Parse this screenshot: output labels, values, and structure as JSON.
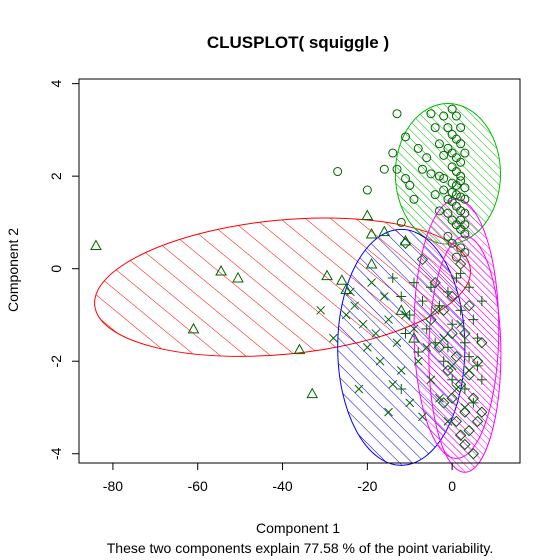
{
  "chart_data": {
    "type": "scatter",
    "title": "CLUSPLOT( squiggle )",
    "xlabel": "Component 1",
    "ylabel": "Component 2",
    "subtitle": "These two components explain 77.58 % of the point variability.",
    "xlim": [
      -88,
      16
    ],
    "ylim": [
      -4.2,
      4.1
    ],
    "x_ticks": [
      -80,
      -60,
      -40,
      -20,
      0
    ],
    "y_ticks": [
      -4,
      -2,
      0,
      2,
      4
    ],
    "ellipses": [
      {
        "cluster": 1,
        "color": "#ff0000",
        "cx": -40,
        "cy": -0.4,
        "rx": 44.5,
        "ry": 1.45,
        "angle_deg": -5.5,
        "hatch_angle": 45,
        "hatch_spacing": 16
      },
      {
        "cluster": 2,
        "color": "#00bb00",
        "cx": -1,
        "cy": 2.05,
        "rx": 12.4,
        "ry": 1.52,
        "angle_deg": 0,
        "hatch_angle": 45,
        "hatch_spacing": 6
      },
      {
        "cluster": 3,
        "color": "#0000ff",
        "cx": -12,
        "cy": -1.7,
        "rx": 15,
        "ry": 2.55,
        "angle_deg": 0,
        "hatch_angle": 45,
        "hatch_spacing": 9
      },
      {
        "cluster": 4,
        "color": "#ff00ff",
        "cx": 1,
        "cy": -1.3,
        "rx": 10,
        "ry": 2.8,
        "angle_deg": 0,
        "hatch_angle": 45,
        "hatch_spacing": 5
      },
      {
        "cluster": 5,
        "color": "#ff00ff",
        "cx": 3,
        "cy": -1.85,
        "rx": 8.5,
        "ry": 2.55,
        "angle_deg": 0,
        "hatch_angle": 45,
        "hatch_spacing": 5
      }
    ],
    "series": [
      {
        "marker": "triangle",
        "color": "#006400",
        "points": [
          [
            -84,
            0.5
          ],
          [
            -61,
            -1.3
          ],
          [
            -54.5,
            -0.05
          ],
          [
            -50.5,
            -0.2
          ],
          [
            -36,
            -1.75
          ],
          [
            -29.5,
            -0.15
          ],
          [
            -26,
            -0.25
          ],
          [
            -25,
            -0.45
          ],
          [
            -19,
            0.1
          ],
          [
            -19,
            0.75
          ],
          [
            -20,
            1.15
          ],
          [
            -16,
            0.8
          ],
          [
            -11,
            0.6
          ],
          [
            -33,
            -2.7
          ],
          [
            -12,
            -0.9
          ],
          [
            -9,
            -1.5
          ]
        ]
      },
      {
        "marker": "circle",
        "color": "#006400",
        "points": [
          [
            -27,
            2.1
          ],
          [
            -20,
            1.7
          ],
          [
            -16,
            2.15
          ],
          [
            -13,
            2.15
          ],
          [
            -14,
            2.5
          ],
          [
            -13,
            3.35
          ],
          [
            -11,
            2.85
          ],
          [
            -11,
            1.95
          ],
          [
            -10,
            1.8
          ],
          [
            -8,
            2.6
          ],
          [
            -7,
            2.15
          ],
          [
            -5,
            3.35
          ],
          [
            -4,
            3.05
          ],
          [
            -3,
            2.7
          ],
          [
            -2,
            3.3
          ],
          [
            -1,
            3.05
          ],
          [
            0,
            3.45
          ],
          [
            1,
            3.3
          ],
          [
            2,
            3.05
          ],
          [
            -1,
            2.6
          ],
          [
            0,
            2.5
          ],
          [
            1,
            2.4
          ],
          [
            2,
            2.3
          ],
          [
            -3,
            2.0
          ],
          [
            -2,
            1.95
          ],
          [
            0,
            1.85
          ],
          [
            1,
            1.8
          ],
          [
            2,
            1.9
          ],
          [
            3,
            1.75
          ],
          [
            -4,
            1.6
          ],
          [
            -1,
            1.5
          ],
          [
            0,
            1.45
          ],
          [
            1,
            1.35
          ],
          [
            2,
            1.25
          ],
          [
            3,
            1.2
          ],
          [
            -3,
            1.25
          ],
          [
            0,
            1.05
          ],
          [
            1,
            0.95
          ],
          [
            2,
            0.85
          ],
          [
            3,
            0.75
          ],
          [
            -1,
            0.7
          ],
          [
            0,
            0.55
          ],
          [
            2,
            0.45
          ],
          [
            3,
            0.35
          ],
          [
            1,
            0.25
          ],
          [
            0,
            2.9
          ],
          [
            1,
            2.8
          ],
          [
            2,
            2.7
          ],
          [
            0,
            2.2
          ],
          [
            1,
            2.1
          ],
          [
            2,
            2.0
          ],
          [
            3,
            1.5
          ],
          [
            -2,
            2.45
          ],
          [
            -6,
            2.4
          ],
          [
            -5,
            2.05
          ],
          [
            0,
            1.65
          ],
          [
            1,
            1.6
          ],
          [
            2,
            1.55
          ],
          [
            2,
            1.05
          ],
          [
            3,
            0.95
          ],
          [
            -9,
            1.5
          ],
          [
            -12,
            1.0
          ],
          [
            -1,
            1.2
          ],
          [
            3,
            2.5
          ],
          [
            -2,
            1.7
          ]
        ]
      },
      {
        "marker": "x",
        "color": "#006400",
        "points": [
          [
            -31,
            -0.9
          ],
          [
            -28,
            -1.5
          ],
          [
            -25,
            -1.0
          ],
          [
            -23,
            -0.8
          ],
          [
            -21,
            -1.2
          ],
          [
            -20,
            -1.7
          ],
          [
            -19,
            -0.3
          ],
          [
            -18,
            -1.4
          ],
          [
            -17,
            -2.0
          ],
          [
            -16,
            -0.6
          ],
          [
            -15,
            -1.1
          ],
          [
            -14,
            -2.5
          ],
          [
            -13,
            -1.6
          ],
          [
            -12,
            -2.2
          ],
          [
            -11,
            -1.0
          ],
          [
            -10,
            -2.9
          ],
          [
            -9,
            -1.3
          ],
          [
            -8,
            -2.0
          ],
          [
            -7,
            -3.2
          ],
          [
            -6,
            -1.7
          ],
          [
            -5,
            -2.4
          ],
          [
            -4,
            -0.9
          ],
          [
            -3,
            -2.8
          ],
          [
            -2,
            -1.5
          ],
          [
            -1,
            -3.3
          ],
          [
            0,
            -2.1
          ],
          [
            1,
            -2.6
          ],
          [
            2,
            -1.2
          ],
          [
            3,
            -3.0
          ],
          [
            4,
            -2.2
          ],
          [
            -22,
            -2.6
          ],
          [
            -24,
            -0.5
          ],
          [
            -15,
            -3.1
          ]
        ]
      },
      {
        "marker": "plus",
        "color": "#006400",
        "points": [
          [
            -14,
            -0.2
          ],
          [
            -12,
            -0.6
          ],
          [
            -10,
            -1.0
          ],
          [
            -9,
            -0.3
          ],
          [
            -7,
            -0.7
          ],
          [
            -6,
            -1.3
          ],
          [
            -5,
            -0.4
          ],
          [
            -4,
            -1.6
          ],
          [
            -3,
            -0.8
          ],
          [
            -2,
            -2.0
          ],
          [
            -1,
            -0.5
          ],
          [
            0,
            -1.2
          ],
          [
            1,
            -0.2
          ],
          [
            2,
            -0.9
          ],
          [
            3,
            -1.6
          ],
          [
            4,
            -0.4
          ],
          [
            5,
            -1.1
          ],
          [
            6,
            -2.1
          ],
          [
            7,
            -0.7
          ],
          [
            3,
            -2.6
          ],
          [
            -8,
            -1.8
          ],
          [
            -11,
            -1.4
          ],
          [
            0,
            -2.4
          ],
          [
            5,
            -2.9
          ],
          [
            2,
            -0.1
          ],
          [
            6,
            -1.5
          ],
          [
            -1,
            -1.7
          ],
          [
            4,
            -1.9
          ],
          [
            -12,
            -2.6
          ],
          [
            7,
            -2.4
          ]
        ]
      },
      {
        "marker": "diamond",
        "color": "#006400",
        "points": [
          [
            -11,
            0.55
          ],
          [
            -7,
            0.2
          ],
          [
            -4,
            -0.3
          ],
          [
            -2,
            -0.9
          ],
          [
            0,
            -1.4
          ],
          [
            1,
            -1.9
          ],
          [
            2,
            -2.5
          ],
          [
            3,
            -3.1
          ],
          [
            4,
            -3.5
          ],
          [
            5,
            -2.8
          ],
          [
            6,
            -3.3
          ],
          [
            5,
            -4.0
          ],
          [
            7,
            -3.1
          ],
          [
            2,
            -3.6
          ],
          [
            0,
            -2.8
          ],
          [
            -1,
            -2.2
          ],
          [
            3,
            -1.4
          ],
          [
            6,
            -2.0
          ],
          [
            4,
            -0.8
          ],
          [
            2,
            0.1
          ],
          [
            -3,
            -1.7
          ],
          [
            -5,
            -1.1
          ],
          [
            1,
            -3.3
          ],
          [
            4,
            -2.3
          ],
          [
            7,
            -1.6
          ],
          [
            -2,
            -2.9
          ],
          [
            3,
            -3.8
          ],
          [
            0,
            -0.6
          ]
        ]
      }
    ]
  }
}
